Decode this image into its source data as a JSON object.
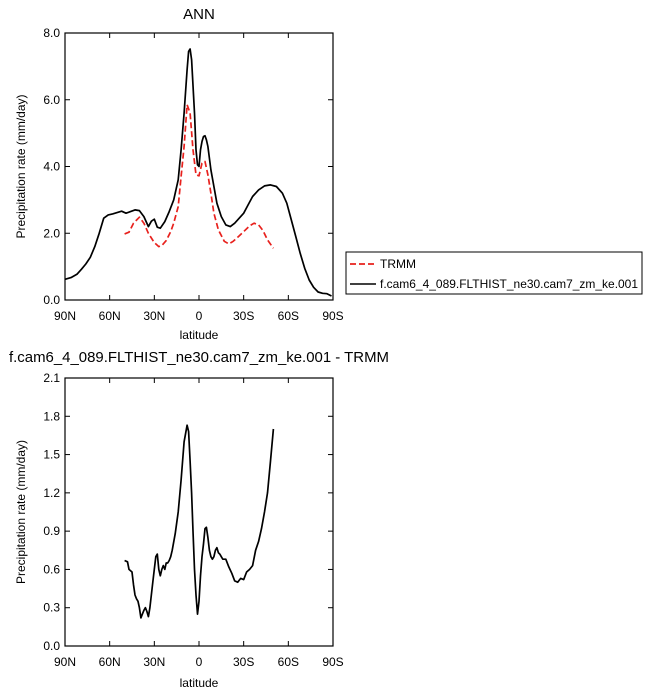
{
  "chart_data": [
    {
      "type": "line",
      "title": "ANN",
      "xlabel": "latitude",
      "ylabel": "Precipitation rate (mm/day)",
      "xlim": [
        90,
        -90
      ],
      "ylim": [
        0,
        8
      ],
      "x_ticks": [
        90,
        60,
        30,
        0,
        -30,
        -60,
        -90
      ],
      "x_tick_labels": [
        "90N",
        "60N",
        "30N",
        "0",
        "30S",
        "60S",
        "90S"
      ],
      "y_ticks": [
        0,
        2,
        4,
        6,
        8
      ],
      "y_tick_labels": [
        "0.0",
        "2.0",
        "4.0",
        "6.0",
        "8.0"
      ],
      "legend_position": "right",
      "series": [
        {
          "name": "TRMM",
          "color": "#e8211d",
          "dashed": true,
          "x": [
            50,
            47,
            44,
            40,
            37,
            34,
            30,
            27,
            25,
            22,
            19,
            17,
            14,
            12,
            10,
            8,
            6,
            4,
            2,
            0,
            -2,
            -4,
            -6,
            -8,
            -10,
            -13,
            -17,
            -20,
            -23,
            -27,
            -30,
            -34,
            -37,
            -40,
            -43,
            -46,
            -50
          ],
          "values": [
            1.98,
            2.03,
            2.3,
            2.48,
            2.3,
            2.0,
            1.72,
            1.6,
            1.63,
            1.78,
            2.05,
            2.3,
            2.8,
            3.7,
            4.6,
            5.85,
            5.6,
            4.5,
            3.75,
            3.72,
            4.1,
            4.15,
            3.75,
            3.2,
            2.6,
            2.1,
            1.76,
            1.68,
            1.76,
            1.92,
            2.05,
            2.22,
            2.3,
            2.25,
            2.08,
            1.8,
            1.55
          ]
        },
        {
          "name": "f.cam6_4_089.FLTHIST_ne30.cam7_zm_ke.001",
          "color": "#000000",
          "dashed": false,
          "x": [
            90,
            86,
            82,
            79,
            76,
            73,
            70,
            67,
            64,
            61,
            58,
            55,
            52,
            49,
            46,
            43,
            40,
            37,
            34,
            32,
            30,
            28,
            26,
            23,
            20,
            17,
            14,
            12,
            10,
            8,
            7,
            6,
            5,
            3,
            2,
            1,
            0,
            -1,
            -2,
            -3,
            -4,
            -5,
            -6,
            -8,
            -10,
            -12,
            -15,
            -18,
            -21,
            -24,
            -27,
            -30,
            -33,
            -36,
            -40,
            -44,
            -48,
            -52,
            -56,
            -59,
            -62,
            -65,
            -68,
            -71,
            -74,
            -77,
            -80,
            -83,
            -86,
            -89
          ],
          "values": [
            0.62,
            0.67,
            0.77,
            0.92,
            1.08,
            1.28,
            1.6,
            2.0,
            2.45,
            2.55,
            2.58,
            2.62,
            2.66,
            2.6,
            2.65,
            2.7,
            2.68,
            2.5,
            2.2,
            2.36,
            2.42,
            2.18,
            2.15,
            2.35,
            2.65,
            3.0,
            3.6,
            4.5,
            5.6,
            6.9,
            7.45,
            7.52,
            7.2,
            5.6,
            4.5,
            4.05,
            4.0,
            4.5,
            4.75,
            4.9,
            4.92,
            4.8,
            4.6,
            3.9,
            3.4,
            2.9,
            2.5,
            2.25,
            2.2,
            2.3,
            2.45,
            2.6,
            2.85,
            3.1,
            3.3,
            3.42,
            3.45,
            3.4,
            3.2,
            2.9,
            2.4,
            1.9,
            1.4,
            0.95,
            0.6,
            0.38,
            0.24,
            0.2,
            0.19,
            0.12
          ]
        }
      ]
    },
    {
      "type": "line",
      "title": "f.cam6_4_089.FLTHIST_ne30.cam7_zm_ke.001 - TRMM",
      "xlabel": "latitude",
      "ylabel": "Precipitation rate (mm/day)",
      "xlim": [
        90,
        -90
      ],
      "ylim": [
        0,
        2.1
      ],
      "x_ticks": [
        90,
        60,
        30,
        0,
        -30,
        -60,
        -90
      ],
      "x_tick_labels": [
        "90N",
        "60N",
        "30N",
        "0",
        "30S",
        "60S",
        "90S"
      ],
      "y_ticks": [
        0,
        0.3,
        0.6,
        0.9,
        1.2,
        1.5,
        1.8,
        2.1
      ],
      "y_tick_labels": [
        "0.0",
        "0.3",
        "0.6",
        "0.9",
        "1.2",
        "1.5",
        "1.8",
        "2.1"
      ],
      "series": [
        {
          "color": "#000000",
          "dashed": false,
          "x": [
            50,
            48,
            47,
            45,
            44,
            43,
            42,
            41,
            40,
            39,
            38,
            37,
            36,
            35,
            34,
            33,
            31,
            30,
            29,
            28,
            27,
            26,
            25,
            24,
            23,
            22,
            21,
            20,
            19,
            18,
            16,
            14,
            12,
            10,
            8,
            7,
            6,
            5,
            4,
            3,
            2,
            1,
            0,
            -1,
            -2,
            -3,
            -4,
            -5,
            -6,
            -7,
            -8,
            -9,
            -10,
            -11,
            -12,
            -13,
            -14,
            -15,
            -16,
            -18,
            -20,
            -22,
            -24,
            -26,
            -28,
            -30,
            -32,
            -34,
            -36,
            -38,
            -40,
            -42,
            -44,
            -46,
            -48,
            -50
          ],
          "values": [
            0.67,
            0.66,
            0.6,
            0.58,
            0.48,
            0.4,
            0.37,
            0.35,
            0.3,
            0.22,
            0.25,
            0.28,
            0.3,
            0.27,
            0.23,
            0.3,
            0.5,
            0.6,
            0.7,
            0.72,
            0.6,
            0.55,
            0.6,
            0.63,
            0.6,
            0.65,
            0.65,
            0.67,
            0.7,
            0.75,
            0.88,
            1.05,
            1.3,
            1.6,
            1.73,
            1.68,
            1.45,
            1.2,
            0.9,
            0.6,
            0.4,
            0.25,
            0.35,
            0.55,
            0.7,
            0.8,
            0.92,
            0.93,
            0.85,
            0.75,
            0.7,
            0.68,
            0.7,
            0.75,
            0.77,
            0.73,
            0.72,
            0.7,
            0.68,
            0.68,
            0.62,
            0.57,
            0.51,
            0.5,
            0.53,
            0.52,
            0.58,
            0.6,
            0.63,
            0.75,
            0.82,
            0.92,
            1.05,
            1.2,
            1.45,
            1.7
          ]
        }
      ]
    }
  ]
}
